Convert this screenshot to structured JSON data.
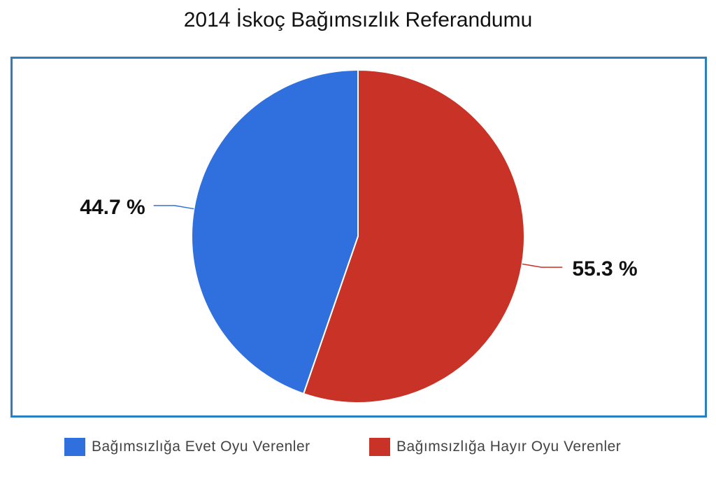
{
  "chart_data": {
    "type": "pie",
    "title": "2014 İskoç Bağımsızlık Referandumu",
    "slices": [
      {
        "name": "Bağımsızlığa Evet Oyu Verenler",
        "value": 44.7,
        "label": "44.7 %",
        "color": "#3070de"
      },
      {
        "name": "Bağımsızlığa Hayır Oyu Verenler",
        "value": 55.3,
        "label": "55.3 %",
        "color": "#c93226"
      }
    ],
    "legend_position": "bottom",
    "frame_color": "#2a7fc0"
  }
}
